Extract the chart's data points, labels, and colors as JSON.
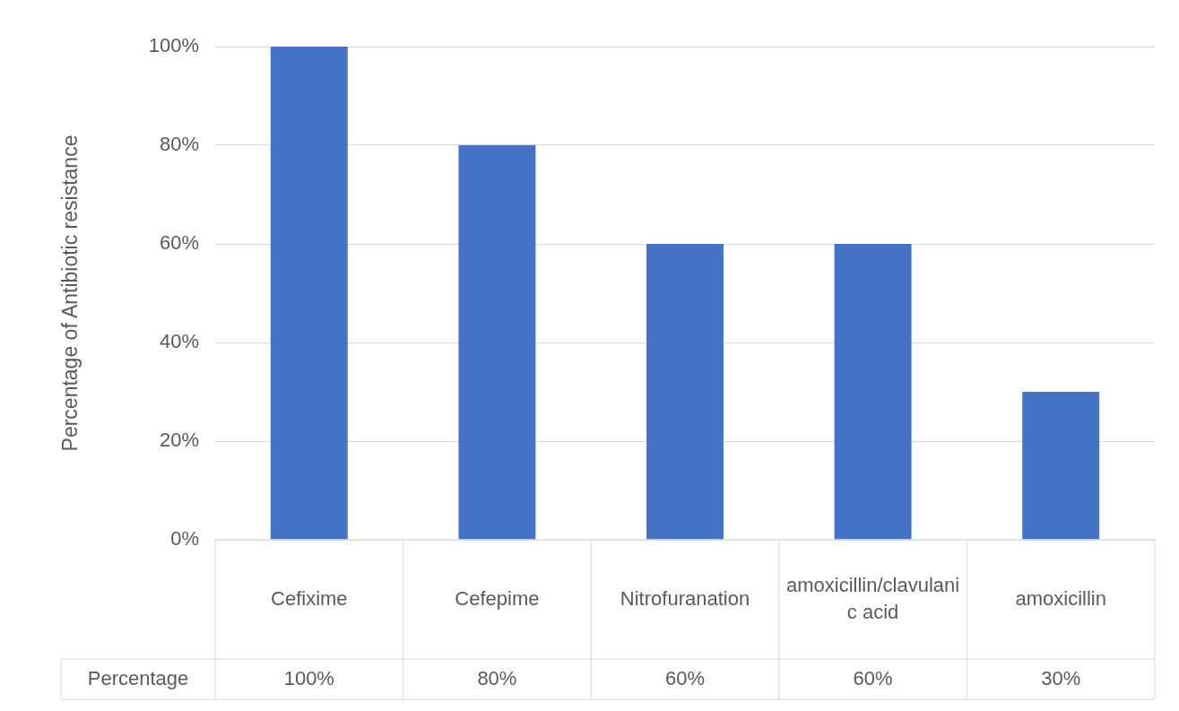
{
  "chart_data": {
    "type": "bar",
    "ylabel": "Percentage of Antibiotic resistance",
    "categories": [
      "Cefixime",
      "Cefepime",
      "Nitrofuranation",
      "amoxicillin/clavulanic acid",
      "amoxicillin"
    ],
    "series": [
      {
        "name": "Percentage",
        "color": "#4472c4",
        "values": [
          100,
          80,
          60,
          60,
          30
        ],
        "value_labels": [
          "100%",
          "80%",
          "60%",
          "60%",
          "30%"
        ]
      }
    ],
    "ylim": [
      0,
      100
    ],
    "yticks": [
      {
        "value": 0,
        "label": "0%"
      },
      {
        "value": 20,
        "label": "20%"
      },
      {
        "value": 40,
        "label": "40%"
      },
      {
        "value": 60,
        "label": "60%"
      },
      {
        "value": 80,
        "label": "80%"
      },
      {
        "value": 100,
        "label": "100%"
      }
    ],
    "grid": "y"
  }
}
